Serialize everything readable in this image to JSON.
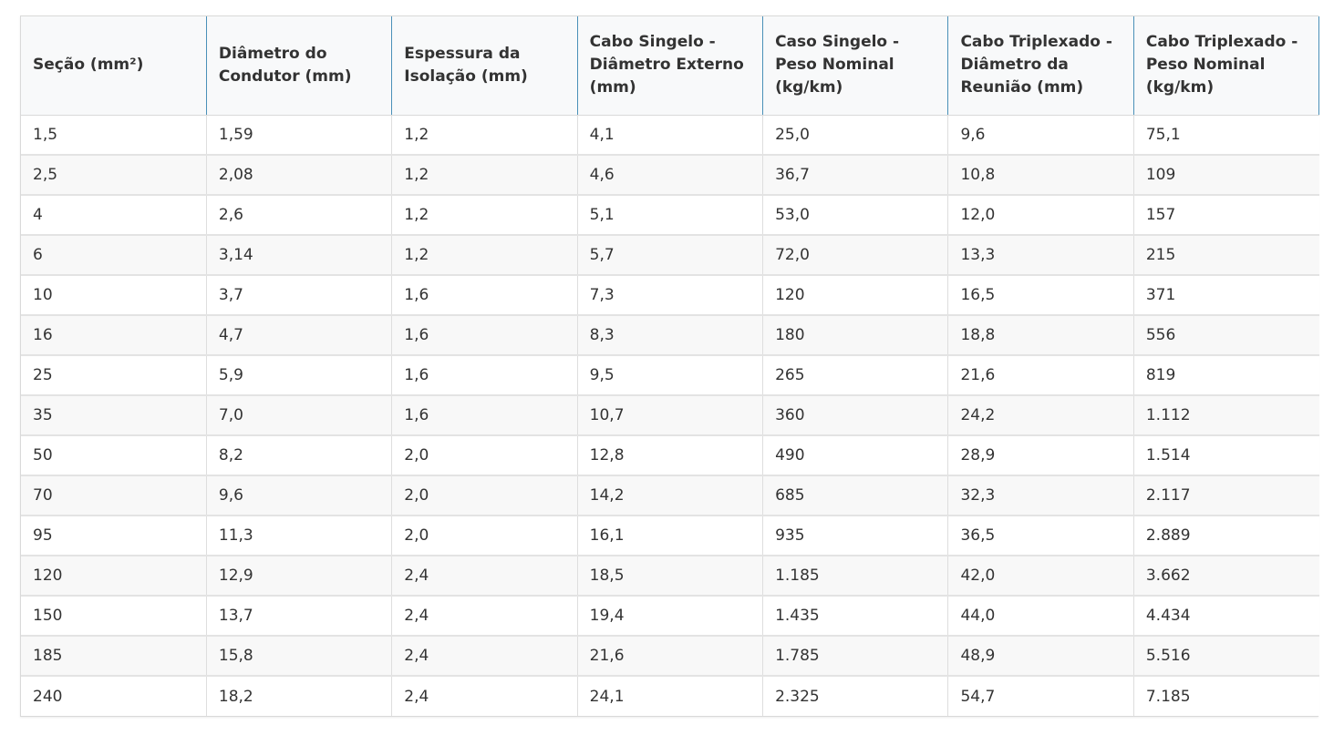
{
  "table": {
    "headers": [
      "Seção (mm²)",
      "Diâmetro do Condutor (mm)",
      "Espessura da Isolação (mm)",
      "Cabo Singelo - Diâmetro Externo (mm)",
      "Caso Singelo - Peso Nominal (kg/km)",
      "Cabo Triplexado - Diâmetro da Reunião (mm)",
      "Cabo Triplexado - Peso Nominal (kg/km)"
    ],
    "rows": [
      [
        "1,5",
        "1,59",
        "1,2",
        "4,1",
        "25,0",
        "9,6",
        "75,1"
      ],
      [
        "2,5",
        "2,08",
        "1,2",
        "4,6",
        "36,7",
        "10,8",
        "109"
      ],
      [
        "4",
        "2,6",
        "1,2",
        "5,1",
        "53,0",
        "12,0",
        "157"
      ],
      [
        "6",
        "3,14",
        "1,2",
        "5,7",
        "72,0",
        "13,3",
        "215"
      ],
      [
        "10",
        "3,7",
        "1,6",
        "7,3",
        "120",
        "16,5",
        "371"
      ],
      [
        "16",
        "4,7",
        "1,6",
        "8,3",
        "180",
        "18,8",
        "556"
      ],
      [
        "25",
        "5,9",
        "1,6",
        "9,5",
        "265",
        "21,6",
        "819"
      ],
      [
        "35",
        "7,0",
        "1,6",
        "10,7",
        "360",
        "24,2",
        "1.112"
      ],
      [
        "50",
        "8,2",
        "2,0",
        "12,8",
        "490",
        "28,9",
        "1.514"
      ],
      [
        "70",
        "9,6",
        "2,0",
        "14,2",
        "685",
        "32,3",
        "2.117"
      ],
      [
        "95",
        "11,3",
        "2,0",
        "16,1",
        "935",
        "36,5",
        "2.889"
      ],
      [
        "120",
        "12,9",
        "2,4",
        "18,5",
        "1.185",
        "42,0",
        "3.662"
      ],
      [
        "150",
        "13,7",
        "2,4",
        "19,4",
        "1.435",
        "44,0",
        "4.434"
      ],
      [
        "185",
        "15,8",
        "2,4",
        "21,6",
        "1.785",
        "48,9",
        "5.516"
      ],
      [
        "240",
        "18,2",
        "2,4",
        "24,1",
        "2.325",
        "54,7",
        "7.185"
      ]
    ]
  }
}
